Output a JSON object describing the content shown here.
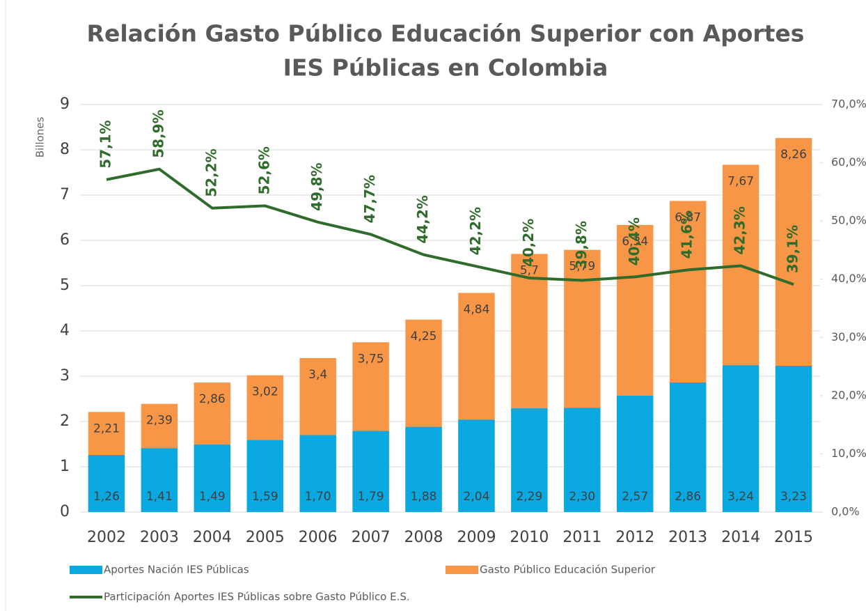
{
  "chart_data": {
    "type": "bar",
    "title": [
      "Relación Gasto Público Educación Superior con Aportes",
      "IES Públicas en Colombia"
    ],
    "y_label": "Billones",
    "categories": [
      "2002",
      "2003",
      "2004",
      "2005",
      "2006",
      "2007",
      "2008",
      "2009",
      "2010",
      "2011",
      "2012",
      "2013",
      "2014",
      "2015"
    ],
    "ylim": [
      0,
      9
    ],
    "yticks": [
      0,
      1,
      2,
      3,
      4,
      5,
      6,
      7,
      8,
      9
    ],
    "y2lim": [
      0,
      70
    ],
    "y2ticks": [
      {
        "value": 0,
        "label": "0,0%"
      },
      {
        "value": 10,
        "label": "10,0%"
      },
      {
        "value": 20,
        "label": "20,0%"
      },
      {
        "value": 30,
        "label": "30,0%"
      },
      {
        "value": 40,
        "label": "40,0%"
      },
      {
        "value": 50,
        "label": "50,0%"
      },
      {
        "value": 60,
        "label": "60,0%"
      },
      {
        "value": 70,
        "label": "70,0%"
      }
    ],
    "grid": true,
    "legend": "bottom",
    "series": [
      {
        "name": "Aportes Nación IES Públicas",
        "type": "bar",
        "color": "#0aa8e0",
        "values": [
          1.26,
          1.41,
          1.49,
          1.59,
          1.7,
          1.79,
          1.88,
          2.04,
          2.29,
          2.3,
          2.57,
          2.86,
          3.24,
          3.23
        ],
        "value_labels": [
          "1,26",
          "1,41",
          "1,49",
          "1,59",
          "1,70",
          "1,79",
          "1,88",
          "2,04",
          "2,29",
          "2,30",
          "2,57",
          "2,86",
          "3,24",
          "3,23"
        ]
      },
      {
        "name": "Gasto Público Educación Superior",
        "type": "bar",
        "color": "#f79646",
        "values": [
          2.21,
          2.39,
          2.86,
          3.02,
          3.4,
          3.75,
          4.25,
          4.84,
          5.7,
          5.79,
          6.34,
          6.87,
          7.67,
          8.26
        ],
        "value_labels": [
          "2,21",
          "2,39",
          "2,86",
          "3,02",
          "3,4",
          "3,75",
          "4,25",
          "4,84",
          "5,7",
          "5,79",
          "6,34",
          "6,87",
          "7,67",
          "8,26"
        ]
      },
      {
        "name": "Participación Aportes IES Públicas sobre Gasto Público E.S.",
        "type": "line",
        "axis": "y2",
        "color": "#2f6b2a",
        "values": [
          57.1,
          58.9,
          52.2,
          52.6,
          49.8,
          47.7,
          44.2,
          42.2,
          40.2,
          39.8,
          40.4,
          41.6,
          42.3,
          39.1
        ],
        "value_labels": [
          "57,1%",
          "58,9%",
          "52,2%",
          "52,6%",
          "49,8%",
          "47,7%",
          "44,2%",
          "42,2%",
          "40,2%",
          "39,8%",
          "40,4%",
          "41,6%",
          "42,3%",
          "39,1%"
        ]
      }
    ]
  }
}
